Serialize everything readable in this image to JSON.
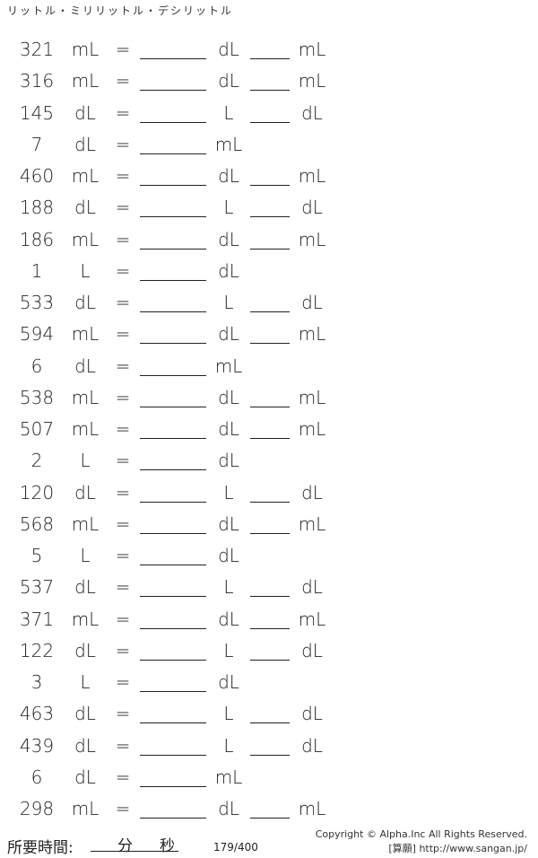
{
  "title": "リットル・ミリリットル・デシリットル",
  "problems": [
    {
      "value": "321",
      "unit": "mL",
      "a": "dL",
      "b": "mL"
    },
    {
      "value": "316",
      "unit": "mL",
      "a": "dL",
      "b": "mL"
    },
    {
      "value": "145",
      "unit": "dL",
      "a": "L",
      "b": "dL"
    },
    {
      "value": "7",
      "unit": "dL",
      "a": "mL",
      "b": ""
    },
    {
      "value": "460",
      "unit": "mL",
      "a": "dL",
      "b": "mL"
    },
    {
      "value": "188",
      "unit": "dL",
      "a": "L",
      "b": "dL"
    },
    {
      "value": "186",
      "unit": "mL",
      "a": "dL",
      "b": "mL"
    },
    {
      "value": "1",
      "unit": "L",
      "a": "dL",
      "b": ""
    },
    {
      "value": "533",
      "unit": "dL",
      "a": "L",
      "b": "dL"
    },
    {
      "value": "594",
      "unit": "mL",
      "a": "dL",
      "b": "mL"
    },
    {
      "value": "6",
      "unit": "dL",
      "a": "mL",
      "b": ""
    },
    {
      "value": "538",
      "unit": "mL",
      "a": "dL",
      "b": "mL"
    },
    {
      "value": "507",
      "unit": "mL",
      "a": "dL",
      "b": "mL"
    },
    {
      "value": "2",
      "unit": "L",
      "a": "dL",
      "b": ""
    },
    {
      "value": "120",
      "unit": "dL",
      "a": "L",
      "b": "dL"
    },
    {
      "value": "568",
      "unit": "mL",
      "a": "dL",
      "b": "mL"
    },
    {
      "value": "5",
      "unit": "L",
      "a": "dL",
      "b": ""
    },
    {
      "value": "537",
      "unit": "dL",
      "a": "L",
      "b": "dL"
    },
    {
      "value": "371",
      "unit": "mL",
      "a": "dL",
      "b": "mL"
    },
    {
      "value": "122",
      "unit": "dL",
      "a": "L",
      "b": "dL"
    },
    {
      "value": "3",
      "unit": "L",
      "a": "dL",
      "b": ""
    },
    {
      "value": "463",
      "unit": "dL",
      "a": "L",
      "b": "dL"
    },
    {
      "value": "439",
      "unit": "dL",
      "a": "L",
      "b": "dL"
    },
    {
      "value": "6",
      "unit": "dL",
      "a": "mL",
      "b": ""
    },
    {
      "value": "298",
      "unit": "mL",
      "a": "dL",
      "b": "mL"
    }
  ],
  "equals": "=",
  "footer": {
    "time_label": "所要時間:",
    "minutes": "分",
    "seconds": "秒",
    "count": "179/400",
    "copyright": "Copyright © Alpha.Inc All Rights Reserved.",
    "site": "[算願] http://www.sangan.jp/"
  }
}
